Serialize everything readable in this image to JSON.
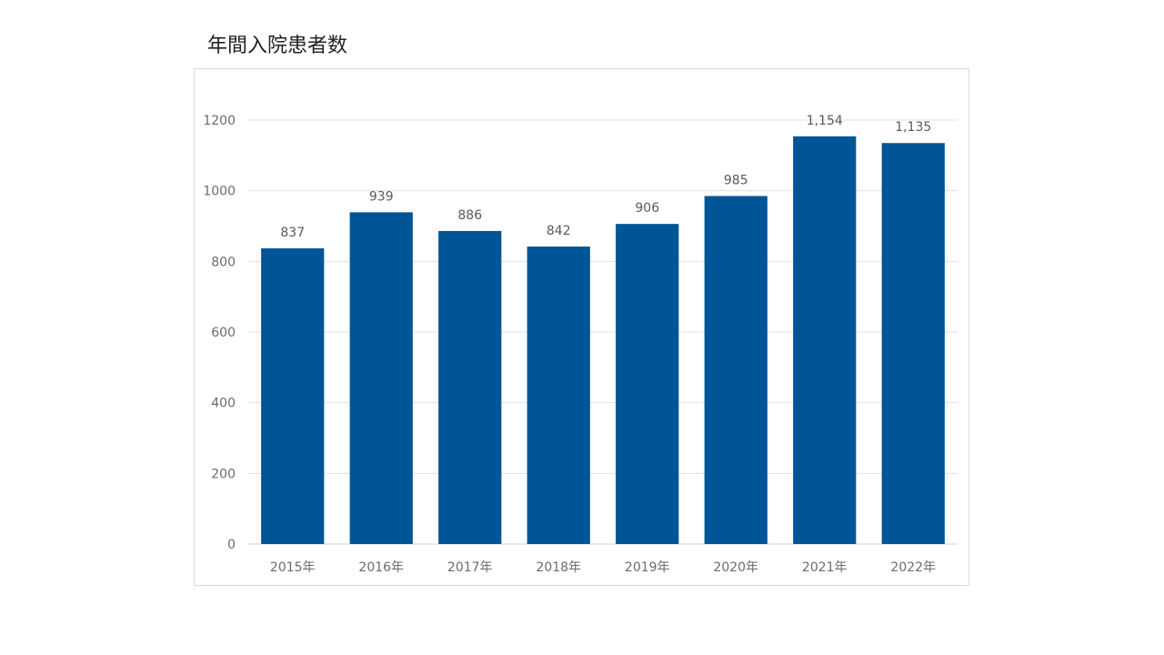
{
  "title": "年間入院患者数",
  "colors": {
    "bar": "#005596",
    "grid": "#e0e0e0",
    "tick_text": "#6b6b6b",
    "label_text": "#595959"
  },
  "chart_data": {
    "type": "bar",
    "title": "年間入院患者数",
    "categories": [
      "2015年",
      "2016年",
      "2017年",
      "2018年",
      "2019年",
      "2020年",
      "2021年",
      "2022年"
    ],
    "values": [
      837,
      939,
      886,
      842,
      906,
      985,
      1154,
      1135
    ],
    "data_labels": [
      "837",
      "939",
      "886",
      "842",
      "906",
      "985",
      "1,154",
      "1,135"
    ],
    "y_ticks": [
      "0",
      "200",
      "400",
      "600",
      "800",
      "1000",
      "1200"
    ],
    "ylim": [
      0,
      1200
    ],
    "xlabel": "",
    "ylabel": "",
    "grid": true,
    "legend": "none"
  }
}
